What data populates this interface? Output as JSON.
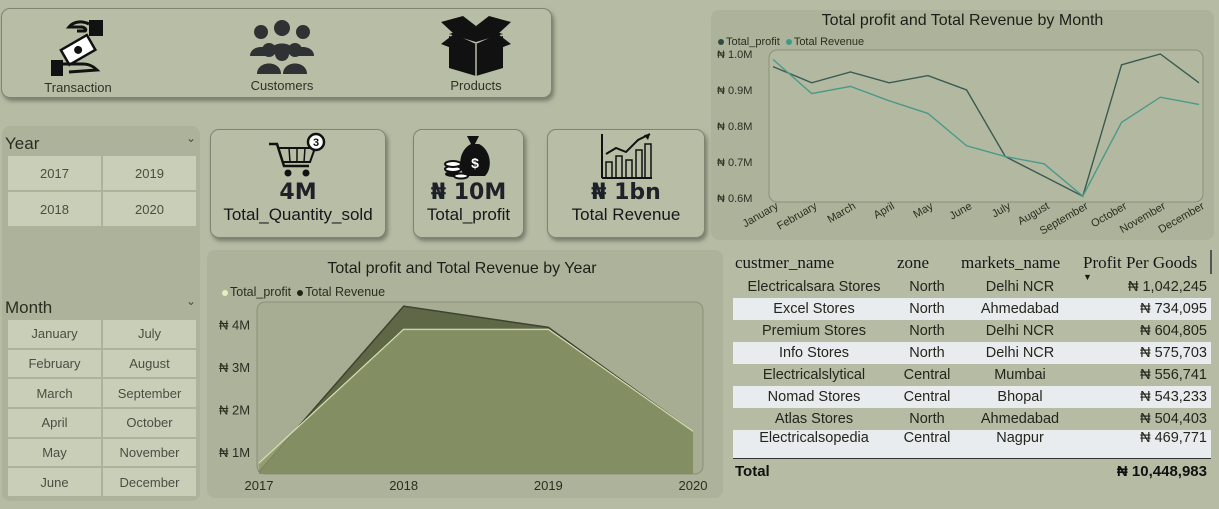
{
  "nav": {
    "items": [
      {
        "label": "Transaction",
        "icon": "money-hand-icon"
      },
      {
        "label": "Customers",
        "icon": "people-group-icon"
      },
      {
        "label": "Products",
        "icon": "open-box-icon"
      }
    ]
  },
  "year_slicer": {
    "title": "Year",
    "options": [
      "2017",
      "2019",
      "2018",
      "2020"
    ]
  },
  "month_slicer": {
    "title": "Month",
    "options": [
      "January",
      "July",
      "February",
      "August",
      "March",
      "September",
      "April",
      "October",
      "May",
      "November",
      "June",
      "December"
    ]
  },
  "kpis": [
    {
      "value": "4M",
      "label": "Total_Quantity_sold",
      "icon": "shopping-cart-icon",
      "badge": "3"
    },
    {
      "value": "₦ 10M",
      "label": "Total_profit",
      "icon": "money-bag-icon"
    },
    {
      "value": "₦ 1bn",
      "label": "Total Revenue",
      "icon": "bar-growth-chart-icon"
    }
  ],
  "colors": {
    "background": "#b6bca4",
    "profit_line_month": "#3a5a52",
    "revenue_line_month": "#4a9a8a",
    "profit_area_year": "#d6e0a0",
    "revenue_area_year": "#56613f"
  },
  "chart_data": [
    {
      "type": "line",
      "title": "Total profit and Total Revenue by Month",
      "legend": [
        "Total_profit",
        "Total Revenue"
      ],
      "legend_position": "top-left",
      "x": [
        "January",
        "February",
        "March",
        "April",
        "May",
        "June",
        "July",
        "August",
        "September",
        "October",
        "November",
        "December"
      ],
      "y_ticks": [
        "₦ 0.6M",
        "₦ 0.7M",
        "₦ 0.8M",
        "₦ 0.9M",
        "₦ 1.0M"
      ],
      "ylim": [
        0.6,
        1.0
      ],
      "series": [
        {
          "name": "Total_profit",
          "values": [
            0.965,
            0.92,
            0.95,
            0.92,
            0.94,
            0.9,
            0.715,
            0.66,
            0.605,
            0.97,
            1.0,
            0.92
          ]
        },
        {
          "name": "Total Revenue",
          "values": [
            0.985,
            0.89,
            0.91,
            0.87,
            0.835,
            0.745,
            0.715,
            0.695,
            0.605,
            0.81,
            0.88,
            0.86
          ]
        }
      ]
    },
    {
      "type": "area",
      "title": "Total profit and Total Revenue by Year",
      "legend": [
        "Total_profit",
        "Total Revenue"
      ],
      "legend_position": "top-left",
      "x": [
        "2017",
        "2018",
        "2019",
        "2020"
      ],
      "y_ticks": [
        "₦ 1M",
        "₦ 2M",
        "₦ 3M",
        "₦ 4M"
      ],
      "ylim": [
        0.5,
        4.5
      ],
      "series": [
        {
          "name": "Total_profit",
          "values": [
            0.75,
            3.9,
            3.9,
            1.5
          ]
        },
        {
          "name": "Total Revenue",
          "values": [
            0.55,
            4.45,
            3.95,
            1.5
          ]
        }
      ]
    }
  ],
  "table": {
    "headers": [
      "custmer_name",
      "zone",
      "markets_name",
      "Profit Per Goods"
    ],
    "rows": [
      [
        "Electricalsara Stores",
        "North",
        "Delhi NCR",
        "₦ 1,042,245"
      ],
      [
        "Excel Stores",
        "North",
        "Ahmedabad",
        "₦ 734,095"
      ],
      [
        "Premium Stores",
        "North",
        "Delhi NCR",
        "₦ 604,805"
      ],
      [
        "Info Stores",
        "North",
        "Delhi NCR",
        "₦ 575,703"
      ],
      [
        "Electricalslytical",
        "Central",
        "Mumbai",
        "₦ 556,741"
      ],
      [
        "Nomad Stores",
        "Central",
        "Bhopal",
        "₦ 543,233"
      ],
      [
        "Atlas Stores",
        "North",
        "Ahmedabad",
        "₦ 504,403"
      ],
      [
        "Electricalsopedia",
        "Central",
        "Nagpur",
        "₦ 469,771"
      ]
    ],
    "total_label": "Total",
    "total_value": "₦ 10,448,983"
  }
}
